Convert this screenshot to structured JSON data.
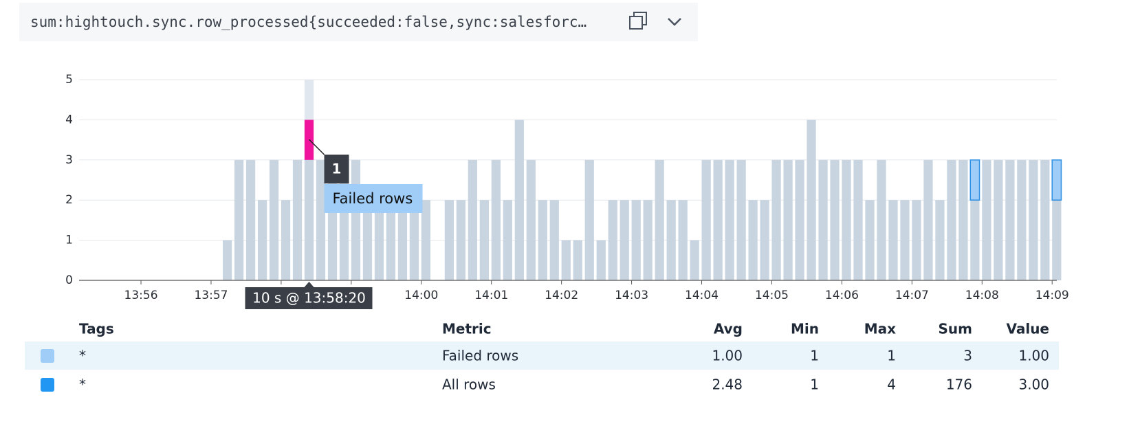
{
  "query": "sum:hightouch.sync.row_processed{succeeded:false,sync:salesforc…",
  "chart_data": {
    "type": "bar",
    "stacked": true,
    "x": [
      "13:57:10",
      "13:57:20",
      "13:57:30",
      "13:57:40",
      "13:57:50",
      "13:58:00",
      "13:58:10",
      "13:58:20",
      "13:58:30",
      "13:58:40",
      "13:58:50",
      "13:59:00",
      "13:59:10",
      "13:59:20",
      "13:59:30",
      "13:59:40",
      "13:59:50",
      "14:00:00",
      "14:00:10",
      "14:00:20",
      "14:00:30",
      "14:00:40",
      "14:00:50",
      "14:01:00",
      "14:01:10",
      "14:01:20",
      "14:01:30",
      "14:01:40",
      "14:01:50",
      "14:02:00",
      "14:02:10",
      "14:02:20",
      "14:02:30",
      "14:02:40",
      "14:02:50",
      "14:03:00",
      "14:03:10",
      "14:03:20",
      "14:03:30",
      "14:03:40",
      "14:03:50",
      "14:04:00",
      "14:04:10",
      "14:04:20",
      "14:04:30",
      "14:04:40",
      "14:04:50",
      "14:05:00",
      "14:05:10",
      "14:05:20",
      "14:05:30",
      "14:05:40",
      "14:05:50",
      "14:06:00",
      "14:06:10",
      "14:06:20",
      "14:06:30",
      "14:06:40",
      "14:06:50",
      "14:07:00",
      "14:07:10",
      "14:07:20",
      "14:07:30",
      "14:07:40",
      "14:07:50",
      "14:08:00",
      "14:08:10",
      "14:08:20",
      "14:08:30",
      "14:08:40",
      "14:08:50",
      "14:09:00"
    ],
    "series": [
      {
        "name": "Failed rows",
        "color": "#9fcdf7",
        "border": "#2d8fe3",
        "values": [
          null,
          null,
          null,
          null,
          null,
          null,
          null,
          1,
          null,
          null,
          null,
          null,
          null,
          null,
          null,
          null,
          null,
          null,
          null,
          null,
          null,
          null,
          null,
          null,
          null,
          null,
          null,
          null,
          null,
          null,
          null,
          null,
          null,
          null,
          null,
          null,
          null,
          null,
          null,
          null,
          null,
          null,
          null,
          null,
          null,
          null,
          null,
          null,
          null,
          null,
          null,
          null,
          null,
          null,
          null,
          null,
          null,
          null,
          null,
          null,
          null,
          null,
          null,
          null,
          1,
          null,
          null,
          null,
          null,
          null,
          null,
          1
        ]
      },
      {
        "name": "All rows",
        "color": "#2196f3",
        "values": [
          1,
          3,
          3,
          2,
          3,
          2,
          3,
          3,
          3,
          3,
          3,
          3,
          2,
          2,
          2,
          2,
          2,
          2,
          null,
          2,
          2,
          3,
          2,
          3,
          2,
          4,
          3,
          2,
          2,
          1,
          1,
          3,
          1,
          2,
          2,
          2,
          2,
          3,
          2,
          2,
          1,
          3,
          3,
          3,
          3,
          2,
          2,
          3,
          3,
          3,
          4,
          3,
          3,
          3,
          3,
          2,
          3,
          2,
          2,
          2,
          3,
          2,
          3,
          3,
          2,
          3,
          3,
          3,
          3,
          3,
          3,
          2
        ]
      }
    ],
    "dimmed_color": "#c8d5e1",
    "highlight_color": "#f0139c",
    "hover_band_color": "#e1e7ee",
    "xlim": [
      "13:55:07",
      "14:09:04"
    ],
    "xticks": [
      "13:56",
      "13:57",
      "13:58",
      "13:59",
      "14:00",
      "14:01",
      "14:02",
      "14:03",
      "14:04",
      "14:05",
      "14:06",
      "14:07",
      "14:08",
      "14:09"
    ],
    "ylim": [
      0,
      5
    ],
    "yticks": [
      0,
      1,
      2,
      3,
      4,
      5
    ],
    "grid": true,
    "tooltip": {
      "x_label": "10 s @ 13:58:20",
      "value": 1,
      "series": "Failed rows"
    }
  },
  "legend_table": {
    "columns": [
      "Tags",
      "Metric",
      "Avg",
      "Min",
      "Max",
      "Sum",
      "Value"
    ],
    "rows": [
      {
        "tag": "*",
        "avg": "1.00",
        "min": 1,
        "max": 1,
        "sum": 3,
        "value": "1.00"
      },
      {
        "tag": "*",
        "avg": "2.48",
        "min": 1,
        "max": 4,
        "sum": 176,
        "value": "3.00"
      }
    ]
  }
}
